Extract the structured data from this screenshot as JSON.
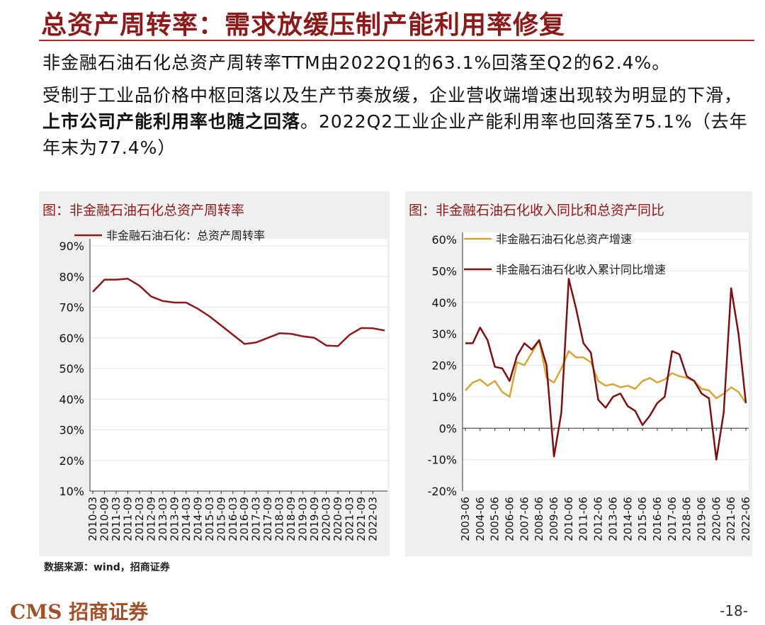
{
  "header": {
    "title": "总资产周转率：需求放缓压制产能利用率修复"
  },
  "paragraphs": [
    "非金融石油石化总资产周转率TTM由2022Q1的63.1%回落至Q2的62.4%。",
    [
      "受制于工业品价格中枢回落以及生产节奏放缓，企业营收端增速出现较为明显的下滑，",
      "上市公司产能利用率也随之回落",
      "。2022Q2工业企业产能利用率也回落至75.1%（去年年末为77.4%）"
    ]
  ],
  "chart_data": [
    {
      "type": "line",
      "title": "图：非金融石油石化总资产周转率",
      "categories": [
        "2010-03",
        "2010-09",
        "2011-03",
        "2011-09",
        "2012-03",
        "2012-09",
        "2013-03",
        "2013-09",
        "2014-03",
        "2014-09",
        "2015-03",
        "2015-09",
        "2016-03",
        "2016-09",
        "2017-03",
        "2017-09",
        "2018-03",
        "2018-09",
        "2019-03",
        "2019-09",
        "2020-03",
        "2020-09",
        "2021-03",
        "2021-09",
        "2022-03",
        null
      ],
      "series": [
        {
          "name": "非金融石油石化：总资产周转率",
          "color": "#8b1a1a",
          "values": [
            75,
            79,
            79,
            79.3,
            77,
            73.5,
            72,
            71.5,
            71.5,
            69.5,
            67,
            64,
            61,
            58,
            58.5,
            60,
            61.5,
            61.3,
            60.5,
            60,
            57.5,
            57.3,
            61,
            63.2,
            63.1,
            62.4
          ]
        }
      ],
      "ylim": [
        10,
        90
      ],
      "yticks": [
        {
          "value": 10,
          "label": "10%"
        },
        {
          "value": 20,
          "label": "20%"
        },
        {
          "value": 30,
          "label": "30%"
        },
        {
          "value": 40,
          "label": "40%"
        },
        {
          "value": 50,
          "label": "50%"
        },
        {
          "value": 60,
          "label": "60%"
        },
        {
          "value": 70,
          "label": "70%"
        },
        {
          "value": 80,
          "label": "80%"
        },
        {
          "value": 90,
          "label": "90%"
        }
      ],
      "grid": true
    },
    {
      "type": "line",
      "title": "图：非金融石油石化收入同比和总资产同比",
      "categories": [
        "2003-06",
        null,
        "2004-06",
        null,
        "2005-06",
        null,
        "2006-06",
        null,
        "2007-06",
        null,
        "2008-06",
        null,
        "2009-06",
        null,
        "2010-06",
        null,
        "2011-06",
        null,
        "2012-06",
        null,
        "2013-06",
        null,
        "2014-06",
        null,
        "2015-06",
        null,
        "2016-06",
        null,
        "2017-06",
        null,
        "2018-06",
        null,
        "2019-06",
        null,
        "2020-06",
        null,
        "2021-06",
        null,
        "2022-06"
      ],
      "series": [
        {
          "name": "非金融石油石化总资产增速",
          "color": "#d4a53c",
          "values": [
            12,
            14.5,
            15.5,
            13.5,
            15,
            11.5,
            10,
            21,
            20,
            24,
            28,
            16,
            14.5,
            19,
            24.5,
            22.5,
            22.5,
            21,
            15,
            13.5,
            14,
            13,
            13.5,
            12.5,
            15,
            16,
            14.5,
            15.5,
            17.5,
            16.5,
            16,
            15,
            12.5,
            12,
            9.5,
            11,
            13,
            11.5,
            8
          ]
        },
        {
          "name": "非金融石油石化收入累计同比增速",
          "color": "#7a1010",
          "values": [
            27,
            27,
            32,
            28,
            19.5,
            19,
            15,
            23,
            27,
            25,
            28,
            20,
            -9,
            5,
            47.5,
            38,
            27,
            24,
            9,
            6.5,
            10,
            11,
            7,
            5.5,
            1,
            4,
            8,
            10,
            24.5,
            23.5,
            16.5,
            15,
            11,
            9.5,
            -10,
            5,
            44.5,
            30,
            8
          ]
        }
      ],
      "ylim": [
        -20,
        60
      ],
      "yticks": [
        {
          "value": -20,
          "label": "-20%"
        },
        {
          "value": -10,
          "label": "-10%"
        },
        {
          "value": 0,
          "label": "0%"
        },
        {
          "value": 10,
          "label": "10%"
        },
        {
          "value": 20,
          "label": "20%"
        },
        {
          "value": 30,
          "label": "30%"
        },
        {
          "value": 40,
          "label": "40%"
        },
        {
          "value": 50,
          "label": "50%"
        },
        {
          "value": 60,
          "label": "60%"
        }
      ],
      "grid": true
    }
  ],
  "footer": {
    "source": "数据来源：wind，招商证券",
    "logo": "CMS 招商证券",
    "page": "-18-"
  }
}
